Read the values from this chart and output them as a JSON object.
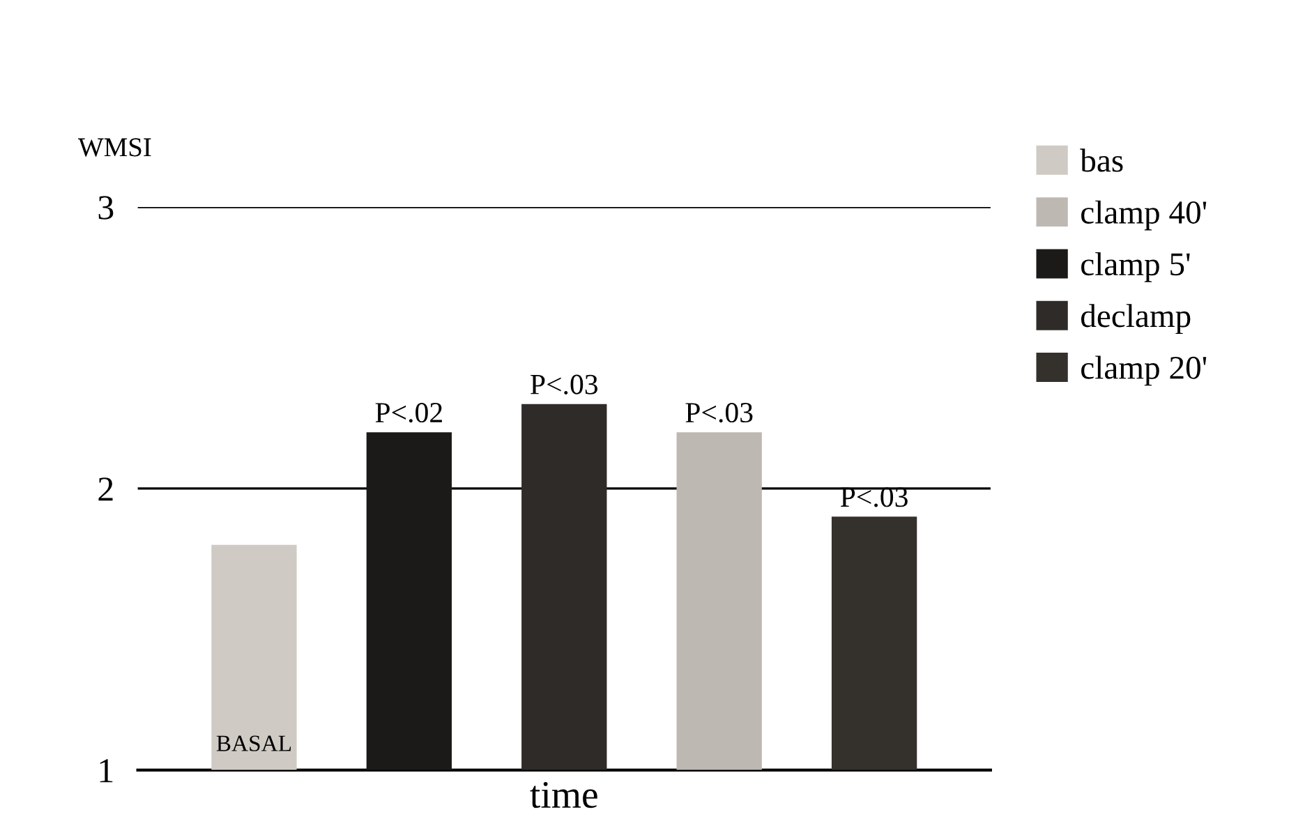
{
  "chart_data": {
    "type": "bar",
    "ylabel": "WMSI",
    "xlabel": "time",
    "categories": [
      null,
      null,
      null,
      null,
      null
    ],
    "series": [
      {
        "name": "bas",
        "color": "#cfcbc4",
        "values": [
          1.8,
          null,
          null,
          null,
          null
        ],
        "value_labels": [
          null,
          null,
          null,
          null,
          null
        ]
      },
      {
        "name": "clamp 40'",
        "color": "#bdb9b2",
        "values": [
          null,
          null,
          null,
          2.2,
          null
        ],
        "value_labels": [
          null,
          null,
          null,
          "P<.03",
          null
        ]
      },
      {
        "name": "clamp 5'",
        "color": "#1c1a18",
        "values": [
          null,
          2.2,
          null,
          null,
          null
        ],
        "value_labels": [
          null,
          "P<.02",
          null,
          null,
          null
        ]
      },
      {
        "name": "declamp",
        "color": "#2e2b28",
        "values": [
          null,
          null,
          2.3,
          null,
          null
        ],
        "value_labels": [
          null,
          null,
          "P<.03",
          null,
          null
        ]
      },
      {
        "name": "clamp 20'",
        "color": "#34312d",
        "values": [
          null,
          null,
          null,
          null,
          1.9
        ],
        "value_labels": [
          null,
          null,
          null,
          null,
          "P<.03"
        ]
      }
    ],
    "ylim": [
      1,
      3
    ],
    "yticks": [
      1,
      2,
      3
    ],
    "grid": "y",
    "legend": "top right",
    "annotations": [
      "BASAL"
    ]
  }
}
